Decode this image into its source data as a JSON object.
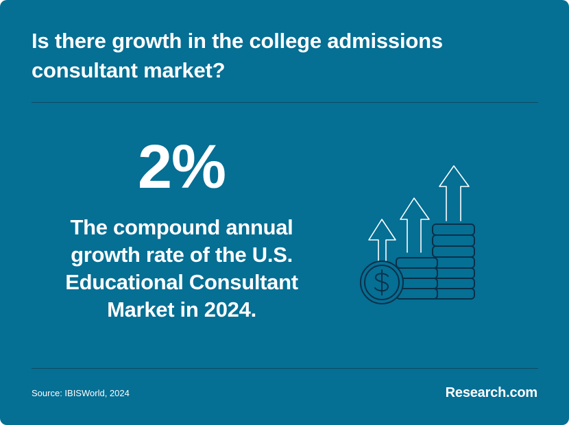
{
  "header": {
    "title": "Is there growth in the college admissions consultant market?"
  },
  "main": {
    "stat_value": "2%",
    "stat_description": "The compound annual growth rate of the U.S. Educational Consultant Market in 2024.",
    "illustration_icon": "growth-coins-arrows-icon"
  },
  "footer": {
    "source": "Source: IBISWorld, 2024",
    "brand": "Research.com"
  },
  "colors": {
    "background": "#056f94",
    "text": "#ffffff",
    "icon_stroke": "#0c2f48",
    "divider": "#0e4a63"
  }
}
